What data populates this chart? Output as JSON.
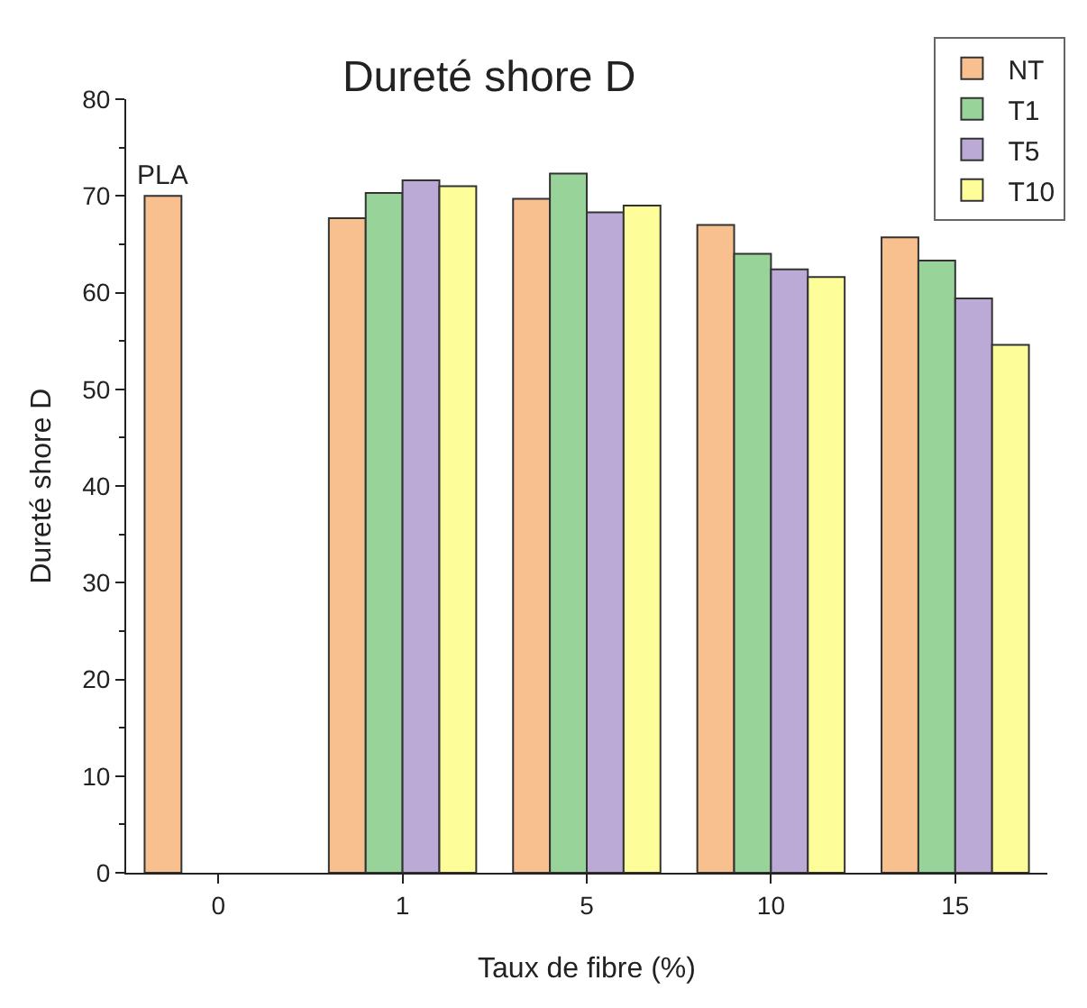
{
  "chart_data": {
    "type": "bar",
    "title": "Dureté shore D",
    "xlabel": "Taux de fibre (%)",
    "ylabel": "Dureté shore D",
    "categories": [
      "0",
      "1",
      "5",
      "10",
      "15"
    ],
    "series": [
      {
        "name": "NT",
        "color": "#f9c08f",
        "values": [
          70,
          67.7,
          69.7,
          67,
          65.7
        ]
      },
      {
        "name": "T1",
        "color": "#98d49a",
        "values": [
          null,
          70.3,
          72.3,
          64,
          63.3
        ]
      },
      {
        "name": "T5",
        "color": "#bbaad6",
        "values": [
          null,
          71.6,
          68.3,
          62.4,
          59.4
        ]
      },
      {
        "name": "T10",
        "color": "#fdfd9a",
        "values": [
          null,
          71,
          69,
          61.6,
          54.6
        ]
      }
    ],
    "ylim": [
      0,
      80
    ],
    "yticks": [
      0,
      10,
      20,
      30,
      40,
      50,
      60,
      70,
      80
    ],
    "grid": false,
    "legend": "top right",
    "annotations": [
      "PLA"
    ]
  }
}
